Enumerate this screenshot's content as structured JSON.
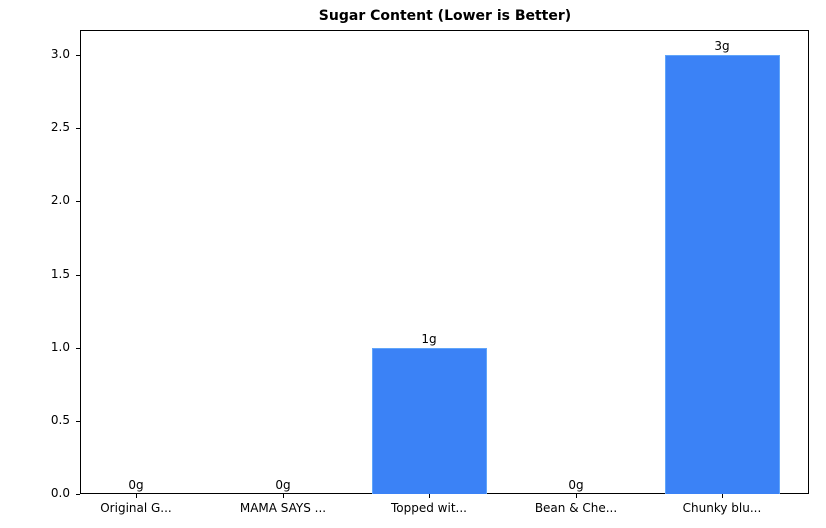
{
  "chart_data": {
    "type": "bar",
    "title": "Sugar Content (Lower is Better)",
    "xlabel": "",
    "ylabel": "",
    "categories": [
      "Original G...",
      "MAMA SAYS ...",
      "Topped wit...",
      "Bean & Che...",
      "Chunky blu..."
    ],
    "values": [
      0,
      0,
      1,
      0,
      3
    ],
    "value_labels": [
      "0g",
      "0g",
      "1g",
      "0g",
      "3g"
    ],
    "ylim": [
      0,
      3.15
    ],
    "yticks": [
      "0.0",
      "0.5",
      "1.0",
      "1.5",
      "2.0",
      "2.5",
      "3.0"
    ],
    "grid": false,
    "bar_color": "#3b82f6"
  }
}
